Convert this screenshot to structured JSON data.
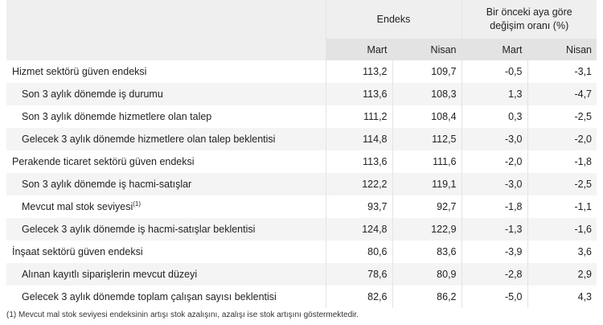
{
  "header": {
    "group1": "Endeks",
    "group2": "Bir önceki aya göre değişim oranı (%)",
    "sub": [
      "Mart",
      "Nisan",
      "Mart",
      "Nisan"
    ]
  },
  "rows": [
    {
      "label": "Hizmet sektörü güven endeksi",
      "level": 0,
      "values": [
        "113,2",
        "109,7",
        "-0,5",
        "-3,1"
      ]
    },
    {
      "label": "Son 3 aylık dönemde iş durumu",
      "level": 1,
      "values": [
        "113,6",
        "108,3",
        "1,3",
        "-4,7"
      ]
    },
    {
      "label": "Son 3 aylık dönemde hizmetlere olan talep",
      "level": 1,
      "values": [
        "111,2",
        "108,4",
        "0,3",
        "-2,5"
      ]
    },
    {
      "label": "Gelecek 3 aylık dönemde hizmetlere olan talep beklentisi",
      "level": 1,
      "values": [
        "114,8",
        "112,5",
        "-3,0",
        "-2,0"
      ]
    },
    {
      "label": "Perakende ticaret sektörü güven endeksi",
      "level": 0,
      "values": [
        "113,6",
        "111,6",
        "-2,0",
        "-1,8"
      ]
    },
    {
      "label": "Son 3 aylık dönemde iş hacmi-satışlar",
      "level": 1,
      "values": [
        "122,2",
        "119,1",
        "-3,0",
        "-2,5"
      ]
    },
    {
      "label": "Mevcut mal stok seviyesi",
      "sup": "(1)",
      "level": 1,
      "values": [
        "93,7",
        "92,7",
        "-1,8",
        "-1,1"
      ]
    },
    {
      "label": "Gelecek 3 aylık dönemde iş hacmi-satışlar beklentisi",
      "level": 1,
      "values": [
        "124,8",
        "122,9",
        "-1,3",
        "-1,6"
      ]
    },
    {
      "label": "İnşaat sektörü güven endeksi",
      "level": 0,
      "values": [
        "80,6",
        "83,6",
        "-3,9",
        "3,6"
      ]
    },
    {
      "label": "Alınan kayıtlı siparişlerin mevcut düzeyi",
      "level": 1,
      "values": [
        "78,6",
        "80,9",
        "-2,8",
        "2,9"
      ]
    },
    {
      "label": "Gelecek 3 aylık dönemde toplam çalışan sayısı beklentisi",
      "level": 1,
      "values": [
        "82,6",
        "86,2",
        "-5,0",
        "4,3"
      ]
    }
  ],
  "footnote": "(1) Mevcut mal stok seviyesi endeksinin artışı stok azalışını, azalışı ise stok artışını göstermektedir."
}
